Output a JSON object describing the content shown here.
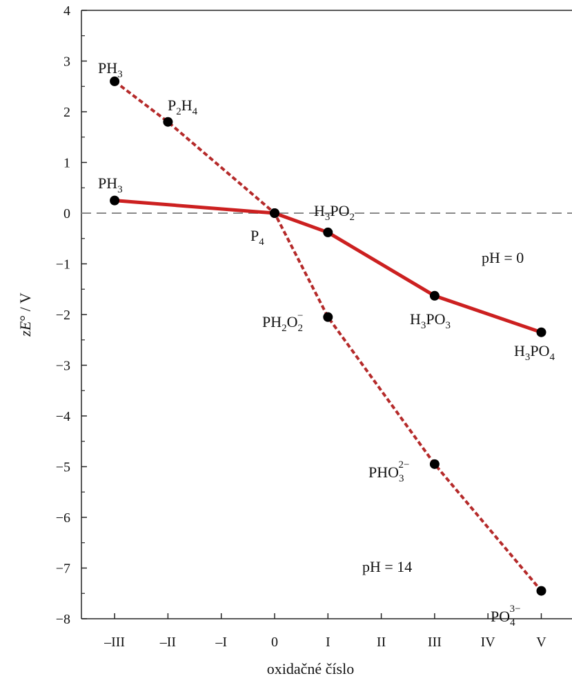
{
  "chart_data": {
    "type": "line",
    "title": "",
    "xlabel": "oxidačné číslo",
    "ylabel": "zE° / V",
    "x_tick_labels": [
      "–III",
      "–II",
      "–I",
      "0",
      "I",
      "II",
      "III",
      "IV",
      "V"
    ],
    "x_tick_values": [
      -3,
      -2,
      -1,
      0,
      1,
      2,
      3,
      4,
      5
    ],
    "xlim": [
      -4,
      5.5
    ],
    "ylim": [
      -8,
      4
    ],
    "y_ticks": [
      {
        "value": 4,
        "label": "4"
      },
      {
        "value": 3,
        "label": "3"
      },
      {
        "value": 2,
        "label": "2"
      },
      {
        "value": 1,
        "label": "1"
      },
      {
        "value": 0,
        "label": "0"
      },
      {
        "value": -1,
        "label": "−1"
      },
      {
        "value": -2,
        "label": "−2"
      },
      {
        "value": -3,
        "label": "−3"
      },
      {
        "value": -4,
        "label": "−4"
      },
      {
        "value": -5,
        "label": "−5"
      },
      {
        "value": -6,
        "label": "−6"
      },
      {
        "value": -7,
        "label": "−7"
      },
      {
        "value": -8,
        "label": "−8"
      }
    ],
    "reference_line": {
      "y": 0,
      "style": "dashed",
      "color": "#888888"
    },
    "series": [
      {
        "condition": "pH = 0",
        "line_style": "solid",
        "color": "#cc2020",
        "points": [
          {
            "x": -3,
            "y": 0.25,
            "species": "PH3"
          },
          {
            "x": 0,
            "y": 0.0,
            "species": "P4"
          },
          {
            "x": 1,
            "y": -0.38,
            "species": "H3PO2"
          },
          {
            "x": 3,
            "y": -1.63,
            "species": "H3PO3"
          },
          {
            "x": 5,
            "y": -2.35,
            "species": "H3PO4"
          }
        ]
      },
      {
        "condition": "pH = 14",
        "line_style": "dashed",
        "color": "#b52a2a",
        "points": [
          {
            "x": -3,
            "y": 2.6,
            "species": "PH3"
          },
          {
            "x": -2,
            "y": 1.8,
            "species": "P2H4"
          },
          {
            "x": 0,
            "y": 0.0,
            "species": "P4"
          },
          {
            "x": 1,
            "y": -2.05,
            "species": "PH2O2−"
          },
          {
            "x": 3,
            "y": -4.95,
            "species": "PHO3 2−"
          },
          {
            "x": 5,
            "y": -7.45,
            "species": "PO4 3−"
          }
        ]
      }
    ],
    "annotations": [
      {
        "text": "pH = 0"
      },
      {
        "text": "pH = 14"
      }
    ],
    "grid": false,
    "legend": "none"
  },
  "labels": {
    "ph3_top": {
      "main": "PH",
      "sub": "3"
    },
    "p2h4": {
      "a": "P",
      "sub1": "2",
      "b": "H",
      "sub2": "4"
    },
    "ph3_low": {
      "main": "PH",
      "sub": "3"
    },
    "p4": {
      "main": "P",
      "sub": "4"
    },
    "h3po2": {
      "a": "H",
      "sub1": "3",
      "b": "PO",
      "sub2": "2"
    },
    "ph2o2": {
      "a": "PH",
      "sub1": "2",
      "b": "O",
      "sub2": "2",
      "sup": "−"
    },
    "h3po3": {
      "a": "H",
      "sub1": "3",
      "b": "PO",
      "sub2": "3"
    },
    "h3po4": {
      "a": "H",
      "sub1": "3",
      "b": "PO",
      "sub2": "4"
    },
    "pho3": {
      "a": "PHO",
      "sub": "3",
      "sup": "2−"
    },
    "po4": {
      "a": "PO",
      "sub": "4",
      "sup": "3−"
    },
    "ylabel": {
      "z": "z",
      "e": "E",
      "rest": "° / V"
    }
  },
  "colors": {
    "solid_line": "#cc2020",
    "dashed_line": "#b52a2a",
    "marker": "#000000",
    "axis": "#222222",
    "zero_line": "#888888"
  }
}
